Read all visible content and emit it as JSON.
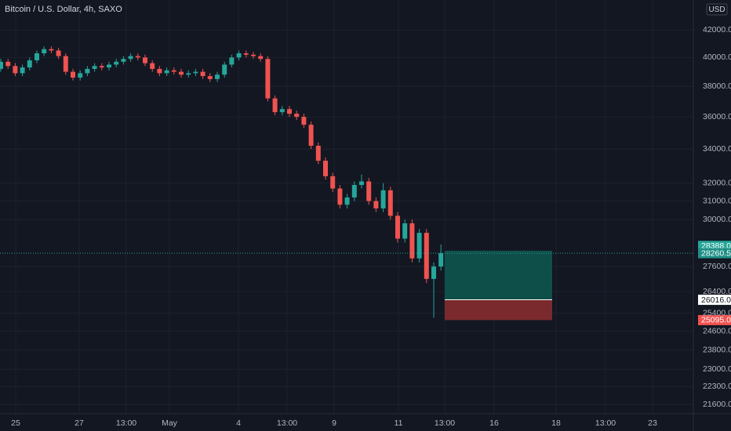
{
  "chart_data": {
    "type": "candlestick",
    "title": "Bitcoin / U.S. Dollar, 4h, SAXO",
    "currency": "USD",
    "log_scale": true,
    "grid": true,
    "up_color": "#26a69a",
    "down_color": "#ef5350",
    "ylim": [
      21250,
      44300
    ],
    "yticks": [
      {
        "value": 42000,
        "label": "42000.0"
      },
      {
        "value": 40000,
        "label": "40000.0"
      },
      {
        "value": 38000,
        "label": "38000.0"
      },
      {
        "value": 36000,
        "label": "36000.0"
      },
      {
        "value": 34000,
        "label": "34000.0"
      },
      {
        "value": 32000,
        "label": "32000.0"
      },
      {
        "value": 31000,
        "label": "31000.0"
      },
      {
        "value": 30000,
        "label": "30000.0"
      },
      {
        "value": 27600,
        "label": "27600.0"
      },
      {
        "value": 26400,
        "label": "26400.0"
      },
      {
        "value": 25400,
        "label": "25400.0"
      },
      {
        "value": 24600,
        "label": "24600.0"
      },
      {
        "value": 23800,
        "label": "23800.0"
      },
      {
        "value": 23000,
        "label": "23000.0"
      },
      {
        "value": 22300,
        "label": "22300.0"
      },
      {
        "value": 21600,
        "label": "21600.0"
      }
    ],
    "x_labels": [
      "25",
      "27",
      "13:00",
      "May",
      "4",
      "13:00",
      "9",
      "11",
      "13:00",
      "16",
      "18",
      "13:00",
      "23"
    ],
    "open": [
      39200,
      39700,
      39400,
      38900,
      39300,
      39800,
      40300,
      40600,
      40500,
      40100,
      39000,
      38600,
      38900,
      39200,
      39400,
      39300,
      39500,
      39700,
      39900,
      40100,
      40000,
      39600,
      39200,
      38900,
      39100,
      39000,
      38800,
      38900,
      39000,
      38700,
      38500,
      38800,
      39500,
      40000,
      40300,
      40200,
      40100,
      39900,
      37200,
      36300,
      36500,
      36200,
      36000,
      35500,
      34200,
      33300,
      32400,
      31700,
      30800,
      31200,
      31900,
      32100,
      31000,
      30600,
      31600,
      30200,
      29000,
      29800,
      28000,
      29300,
      27000,
      27600
    ],
    "high": [
      39900,
      39900,
      39600,
      39500,
      40000,
      40500,
      40800,
      40800,
      40700,
      40300,
      39200,
      39100,
      39400,
      39600,
      39600,
      39700,
      39900,
      40100,
      40300,
      40300,
      40200,
      39800,
      39400,
      39300,
      39300,
      39200,
      39100,
      39200,
      39200,
      38900,
      39000,
      39700,
      40200,
      40500,
      40500,
      40400,
      40300,
      40100,
      37400,
      36700,
      36700,
      36400,
      36200,
      35700,
      34400,
      33500,
      32600,
      31900,
      31400,
      32100,
      32500,
      32300,
      31200,
      32000,
      31800,
      30400,
      30000,
      30000,
      29500,
      29500,
      27800,
      28700
    ],
    "low": [
      39000,
      39200,
      38700,
      38700,
      39100,
      39600,
      40100,
      40300,
      39900,
      38800,
      38400,
      38400,
      38700,
      39000,
      39100,
      39100,
      39300,
      39500,
      39700,
      39800,
      39400,
      39000,
      38700,
      38700,
      38800,
      38600,
      38600,
      38700,
      38500,
      38300,
      38300,
      38600,
      39300,
      39800,
      40000,
      39900,
      39700,
      37000,
      36100,
      36100,
      36000,
      35800,
      35300,
      34000,
      33100,
      32200,
      31500,
      30600,
      30600,
      31000,
      31700,
      30800,
      30400,
      30400,
      30000,
      28800,
      28800,
      27800,
      27800,
      26800,
      25200,
      27400
    ],
    "close": [
      39700,
      39400,
      38900,
      39300,
      39800,
      40300,
      40600,
      40500,
      40100,
      39000,
      38600,
      38900,
      39200,
      39400,
      39300,
      39500,
      39700,
      39900,
      40100,
      40000,
      39600,
      39200,
      38900,
      39100,
      39000,
      38800,
      38900,
      39000,
      38700,
      38500,
      38800,
      39500,
      40000,
      40300,
      40200,
      40100,
      39900,
      37200,
      36300,
      36500,
      36200,
      36000,
      35500,
      34200,
      33300,
      32400,
      31700,
      30800,
      31200,
      31900,
      32100,
      31000,
      30600,
      31600,
      30200,
      29000,
      29800,
      28000,
      29300,
      27000,
      27600,
      28260
    ],
    "target": {
      "value": 28388,
      "label": "28388.0"
    },
    "last_price": {
      "value": 28260.5,
      "label": "28260.5"
    },
    "entry": {
      "value": 26016,
      "label": "26016.0"
    },
    "stop": {
      "value": 25095,
      "label": "25095.0"
    }
  }
}
